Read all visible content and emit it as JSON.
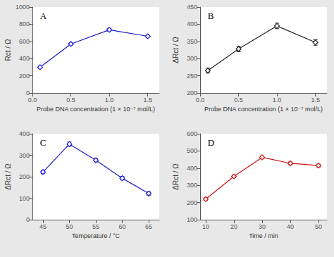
{
  "chart_data": [
    {
      "type": "line",
      "title": "A",
      "xlabel": "Probe DNA concentration (1 × 10⁻⁷ mol/L)",
      "ylabel": "Rct / Ω",
      "x": [
        0.1,
        0.5,
        1.0,
        1.5
      ],
      "values": [
        300,
        570,
        735,
        660
      ],
      "yerr": [
        12,
        10,
        18,
        10
      ],
      "xlim": [
        0.0,
        1.65
      ],
      "xticks": [
        {
          "value": 0.0,
          "label": "0.0"
        },
        0.5,
        {
          "value": 1.0,
          "label": "1.0"
        },
        1.5
      ],
      "ylim": [
        0,
        1000
      ],
      "yticks": [
        0,
        200,
        400,
        600,
        800,
        1000
      ],
      "color": "#1a1acc",
      "marker": "diamond",
      "grid": false
    },
    {
      "type": "line",
      "title": "B",
      "xlabel": "Probe DNA concentration (1 × 10⁻⁷ mol/L)",
      "ylabel": "ΔRct / Ω",
      "x": [
        0.1,
        0.5,
        1.0,
        1.5
      ],
      "values": [
        265,
        328,
        395,
        347
      ],
      "yerr": [
        7,
        8,
        8,
        8
      ],
      "xlim": [
        0.0,
        1.65
      ],
      "xticks": [
        {
          "value": 0.0,
          "label": "0.0"
        },
        0.5,
        {
          "value": 1.0,
          "label": "1.0"
        },
        1.5
      ],
      "ylim": [
        200,
        450
      ],
      "yticks": [
        200,
        250,
        300,
        350,
        400,
        450
      ],
      "color": "#222222",
      "marker": "diamond",
      "grid": false
    },
    {
      "type": "line",
      "title": "C",
      "xlabel": "Temperature / °C",
      "ylabel": "ΔRct / Ω",
      "x": [
        45,
        50,
        55,
        60,
        65
      ],
      "values": [
        222,
        352,
        277,
        193,
        122
      ],
      "yerr": [
        8,
        10,
        8,
        8,
        8
      ],
      "xlim": [
        43,
        67
      ],
      "xticks": [
        45,
        50,
        55,
        60,
        65
      ],
      "ylim": [
        0,
        400
      ],
      "yticks": [
        0,
        100,
        200,
        300,
        400
      ],
      "color": "#1a1acc",
      "marker": "diamond",
      "grid": false
    },
    {
      "type": "line",
      "title": "D",
      "xlabel": "Time / min",
      "ylabel": "ΔRct / Ω",
      "x": [
        10,
        20,
        30,
        40,
        50
      ],
      "values": [
        220,
        352,
        463,
        428,
        415
      ],
      "yerr": [
        8,
        8,
        8,
        8,
        8
      ],
      "xlim": [
        8,
        53
      ],
      "xticks": [
        10,
        20,
        30,
        40,
        50
      ],
      "ylim": [
        100,
        600
      ],
      "yticks": [
        100,
        200,
        300,
        400,
        500,
        600
      ],
      "color": "#cc1111",
      "marker": "diamond",
      "grid": false
    }
  ]
}
